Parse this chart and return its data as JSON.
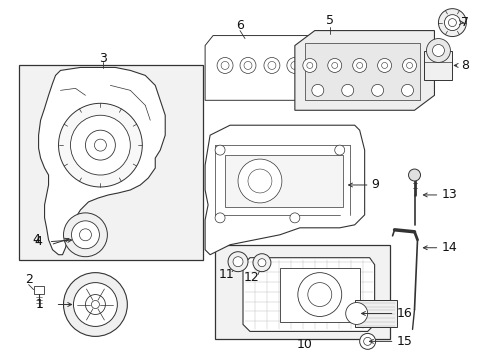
{
  "figsize": [
    4.89,
    3.6
  ],
  "dpi": 100,
  "bg_color": "#ffffff",
  "lc": "#333333",
  "tc": "#111111",
  "fs": 9,
  "box_fc": "#f0f0f0",
  "part_fc": "#ffffff",
  "part_ec": "#333333"
}
